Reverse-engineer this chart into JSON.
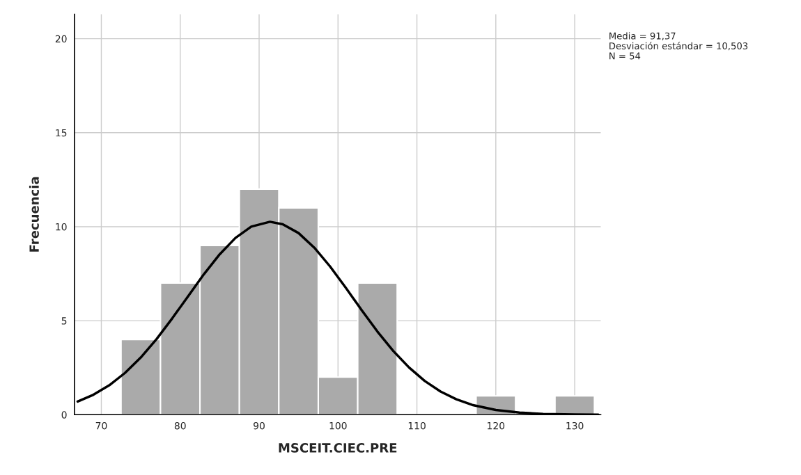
{
  "chart_data": {
    "type": "histogram",
    "xlabel": "MSCEIT.CIEC.PRE",
    "ylabel": "Frecuencia",
    "bins": [
      72.5,
      77.5,
      82.5,
      87.5,
      92.5,
      97.5,
      102.5,
      107.5,
      112.5,
      117.5,
      122.5,
      127.5,
      132.5
    ],
    "values": [
      4,
      7,
      9,
      12,
      11,
      2,
      7,
      0,
      0,
      1,
      0,
      1
    ],
    "color": "#aaaaaa",
    "series": [
      {
        "type": "line",
        "color": "#000000",
        "x": [
          67,
          69,
          71,
          73,
          75,
          77,
          79,
          81,
          83,
          85,
          87,
          89,
          91.37,
          93,
          95,
          97,
          99,
          101,
          103,
          105,
          107,
          109,
          111,
          113,
          115,
          117,
          120,
          123,
          126,
          130,
          133
        ],
        "values": [
          0.7,
          1.06,
          1.56,
          2.22,
          3.04,
          4.02,
          5.13,
          6.3,
          7.47,
          8.53,
          9.4,
          10.0,
          10.26,
          10.13,
          9.66,
          8.88,
          7.88,
          6.74,
          5.56,
          4.42,
          3.39,
          2.51,
          1.79,
          1.23,
          0.82,
          0.52,
          0.25,
          0.11,
          0.04,
          0.01,
          0.0
        ]
      }
    ],
    "xlim": [
      66.6,
      133.3
    ],
    "xticks": [
      70,
      80,
      90,
      100,
      110,
      120,
      130
    ],
    "ylim": [
      0,
      21.3
    ],
    "yticks": [
      0,
      5,
      10,
      15,
      20
    ],
    "grid": true,
    "annotations": [
      "Media = 91,37",
      "Desviación estándar = 10,503",
      "N = 54"
    ]
  }
}
